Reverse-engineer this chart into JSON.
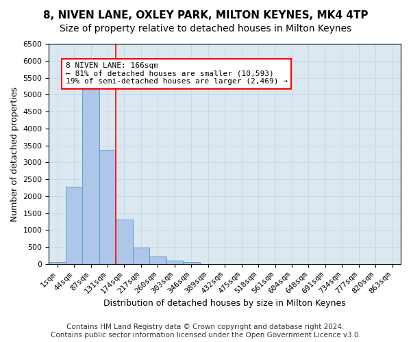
{
  "title": "8, NIVEN LANE, OXLEY PARK, MILTON KEYNES, MK4 4TP",
  "subtitle": "Size of property relative to detached houses in Milton Keynes",
  "xlabel": "Distribution of detached houses by size in Milton Keynes",
  "ylabel": "Number of detached properties",
  "bar_values": [
    70,
    2280,
    5420,
    3380,
    1310,
    480,
    215,
    95,
    55,
    0,
    0,
    0,
    0,
    0,
    0,
    0,
    0,
    0,
    0,
    0,
    0
  ],
  "categories": [
    "1sqm",
    "44sqm",
    "87sqm",
    "131sqm",
    "174sqm",
    "217sqm",
    "260sqm",
    "303sqm",
    "346sqm",
    "389sqm",
    "432sqm",
    "475sqm",
    "518sqm",
    "561sqm",
    "604sqm",
    "648sqm",
    "691sqm",
    "734sqm",
    "777sqm",
    "820sqm",
    "863sqm"
  ],
  "bar_color": "#aec6e8",
  "bar_edge_color": "#5b9bd5",
  "vline_x": 3.5,
  "vline_color": "red",
  "annotation_text": "8 NIVEN LANE: 166sqm\n← 81% of detached houses are smaller (10,593)\n19% of semi-detached houses are larger (2,469) →",
  "annotation_box_color": "white",
  "annotation_box_edge": "red",
  "ylim": [
    0,
    6500
  ],
  "yticks": [
    0,
    500,
    1000,
    1500,
    2000,
    2500,
    3000,
    3500,
    4000,
    4500,
    5000,
    5500,
    6000,
    6500
  ],
  "grid_color": "#c8d8e8",
  "bg_color": "#dce8f0",
  "footer": "Contains HM Land Registry data © Crown copyright and database right 2024.\nContains public sector information licensed under the Open Government Licence v3.0.",
  "title_fontsize": 11,
  "subtitle_fontsize": 10,
  "axis_label_fontsize": 9,
  "tick_fontsize": 8,
  "footer_fontsize": 7.5
}
